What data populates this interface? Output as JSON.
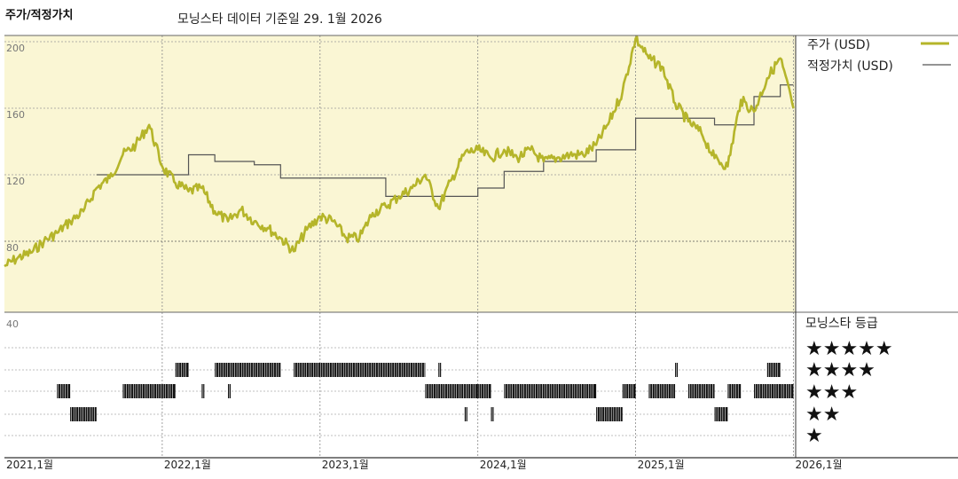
{
  "header": {
    "panel_title": "주가/적정가치",
    "subtitle": "모닝스타 데이터 기준일 29. 1월 2026"
  },
  "legend": {
    "price_label": "주가 (USD)",
    "fair_value_label": "적정가치 (USD)"
  },
  "rating_panel": {
    "title": "모닝스타 등급",
    "levels": [
      "★★★★★",
      "★★★★",
      "★★★",
      "★★",
      "★"
    ]
  },
  "colors": {
    "price": "#b5b52a",
    "fair_value": "#555555",
    "plot_bg": "#faf6d4",
    "rating_bar": "#111111"
  },
  "chart_data": {
    "type": "line",
    "title": "",
    "xlabel": "",
    "ylabel": "",
    "x_ticks": [
      "2021,1월",
      "2022,1월",
      "2023,1월",
      "2024,1월",
      "2025,1월",
      "2026,1월"
    ],
    "y_ticks": [
      "200",
      "160",
      "120",
      "80",
      "40"
    ],
    "ylim": [
      40,
      200
    ],
    "xlim": [
      "2021-01",
      "2026-01"
    ],
    "series": [
      {
        "name": "주가 (USD)",
        "x": [
          "2021-01",
          "2021-02",
          "2021-03",
          "2021-04",
          "2021-05",
          "2021-06",
          "2021-07",
          "2021-08",
          "2021-09",
          "2021-10",
          "2021-11",
          "2021-12",
          "2022-01",
          "2022-02",
          "2022-03",
          "2022-04",
          "2022-05",
          "2022-06",
          "2022-07",
          "2022-08",
          "2022-09",
          "2022-10",
          "2022-11",
          "2022-12",
          "2023-01",
          "2023-02",
          "2023-03",
          "2023-04",
          "2023-05",
          "2023-06",
          "2023-07",
          "2023-08",
          "2023-09",
          "2023-10",
          "2023-11",
          "2023-12",
          "2024-01",
          "2024-02",
          "2024-03",
          "2024-04",
          "2024-05",
          "2024-06",
          "2024-07",
          "2024-08",
          "2024-09",
          "2024-10",
          "2024-11",
          "2024-12",
          "2025-01",
          "2025-02",
          "2025-03",
          "2025-04",
          "2025-05",
          "2025-06",
          "2025-07",
          "2025-08",
          "2025-09",
          "2025-10",
          "2025-11",
          "2025-12",
          "2026-01"
        ],
        "y": [
          65,
          70,
          73,
          80,
          85,
          92,
          98,
          112,
          118,
          132,
          138,
          150,
          125,
          115,
          110,
          112,
          98,
          92,
          99,
          92,
          88,
          82,
          74,
          87,
          95,
          92,
          82,
          82,
          97,
          101,
          107,
          112,
          120,
          100,
          117,
          133,
          135,
          130,
          135,
          130,
          135,
          128,
          130,
          132,
          132,
          138,
          152,
          170,
          202,
          190,
          185,
          163,
          152,
          145,
          130,
          125,
          165,
          158,
          178,
          190,
          160
        ]
      },
      {
        "name": "적정가치 (USD)",
        "x": [
          "2021-08",
          "2021-12",
          "2022-03",
          "2022-05",
          "2022-08",
          "2022-10",
          "2023-03",
          "2023-06",
          "2023-09",
          "2024-01",
          "2024-03",
          "2024-06",
          "2024-10",
          "2025-01",
          "2025-03",
          "2025-07",
          "2025-10",
          "2025-12",
          "2026-01"
        ],
        "y": [
          120,
          120,
          132,
          128,
          126,
          118,
          118,
          107,
          107,
          112,
          122,
          128,
          135,
          154,
          154,
          150,
          167,
          174,
          174
        ]
      }
    ],
    "star_rating_segments": [
      {
        "start": "2021-05",
        "end": "2021-06",
        "stars": 3
      },
      {
        "start": "2021-06",
        "end": "2021-08",
        "stars": 2
      },
      {
        "start": "2021-10",
        "end": "2022-02",
        "stars": 3
      },
      {
        "start": "2022-02",
        "end": "2022-03",
        "stars": 4
      },
      {
        "start": "2022-04",
        "end": "2022-04",
        "stars": 3
      },
      {
        "start": "2022-05",
        "end": "2022-10",
        "stars": 4
      },
      {
        "start": "2022-06",
        "end": "2022-06",
        "stars": 3
      },
      {
        "start": "2022-11",
        "end": "2023-09",
        "stars": 4
      },
      {
        "start": "2023-09",
        "end": "2023-12",
        "stars": 3
      },
      {
        "start": "2023-10",
        "end": "2023-10",
        "stars": 4
      },
      {
        "start": "2024-00",
        "end": "2024-01",
        "stars": 3
      },
      {
        "start": "2024-00",
        "end": "2024-00",
        "stars": 2
      },
      {
        "start": "2024-01",
        "end": "2024-02",
        "stars": 3
      },
      {
        "start": "2024-02",
        "end": "2024-02",
        "stars": 2
      },
      {
        "start": "2024-03",
        "end": "2024-10",
        "stars": 3
      },
      {
        "start": "2024-10",
        "end": "2024-12",
        "stars": 2
      },
      {
        "start": "2025-00",
        "end": "2025-01",
        "stars": 3
      },
      {
        "start": "2025-02",
        "end": "2025-04",
        "stars": 3
      },
      {
        "start": "2025-04",
        "end": "2025-04",
        "stars": 4
      },
      {
        "start": "2025-05",
        "end": "2025-07",
        "stars": 3
      },
      {
        "start": "2025-07",
        "end": "2025-08",
        "stars": 2
      },
      {
        "start": "2025-08",
        "end": "2025-09",
        "stars": 3
      },
      {
        "start": "2025-10",
        "end": "2025-12",
        "stars": 3
      },
      {
        "start": "2025-11",
        "end": "2025-12",
        "stars": 4
      },
      {
        "start": "2025-12",
        "end": "2026-01",
        "stars": 3
      }
    ]
  }
}
